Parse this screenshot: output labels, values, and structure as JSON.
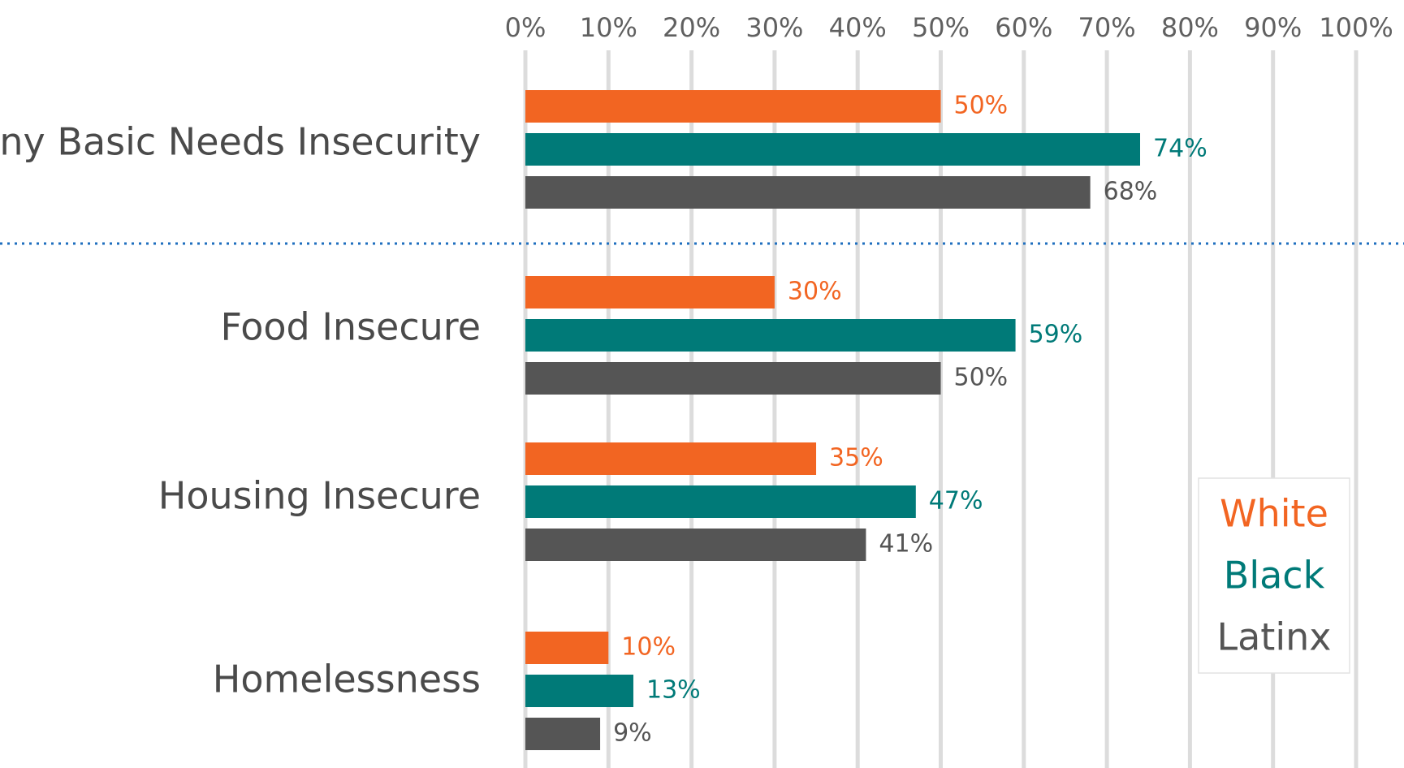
{
  "chart_data": {
    "type": "bar",
    "orientation": "horizontal",
    "categories": [
      "Any Basic Needs Insecurity",
      "Food Insecure",
      "Housing Insecure",
      "Homelessness"
    ],
    "series": [
      {
        "name": "White",
        "color": "#f26522",
        "values": [
          50,
          30,
          35,
          10
        ],
        "labels": [
          "50%",
          "30%",
          "35%",
          "10%"
        ]
      },
      {
        "name": "Black",
        "color": "#007a78",
        "values": [
          74,
          59,
          47,
          13
        ],
        "labels": [
          "74%",
          "59%",
          "47%",
          "13%"
        ]
      },
      {
        "name": "Latinx",
        "color": "#555555",
        "values": [
          68,
          50,
          41,
          9
        ],
        "labels": [
          "68%",
          "50%",
          "41%",
          "9%"
        ]
      }
    ],
    "ticks": [
      "0%",
      "10%",
      "20%",
      "30%",
      "40%",
      "50%",
      "60%",
      "70%",
      "80%",
      "90%",
      "100%"
    ],
    "xlim": [
      0,
      100
    ],
    "xaxis_position": "top",
    "grid": true,
    "legend": {
      "position": "bottom-right",
      "entries": [
        "White",
        "Black",
        "Latinx"
      ]
    },
    "separator": {
      "after_category": "Any Basic Needs Insecurity",
      "style": "dotted",
      "color": "#1f6fbf"
    },
    "title": "",
    "xlabel": "",
    "ylabel": ""
  }
}
